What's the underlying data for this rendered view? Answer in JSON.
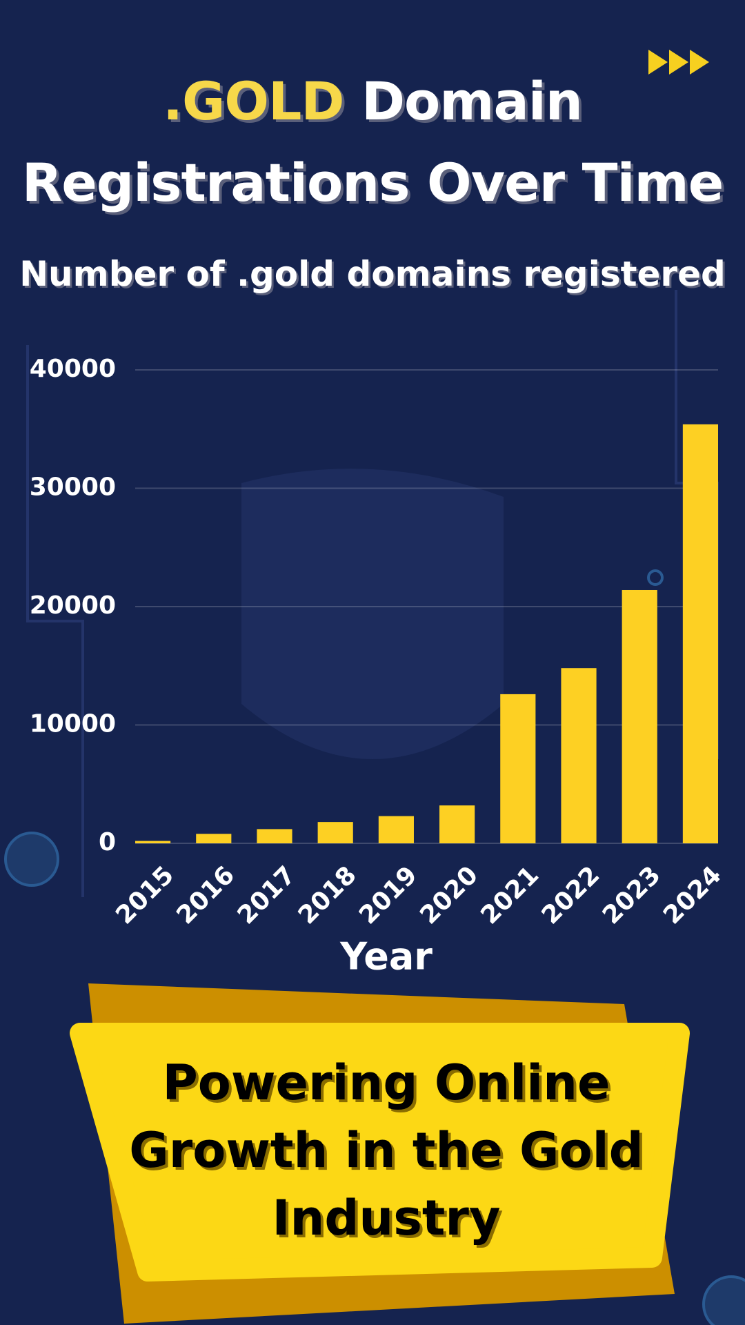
{
  "chart_data": {
    "type": "bar",
    "title_highlight": ".GOLD",
    "title": "Domain Registrations Over Time",
    "subtitle": "Number of .gold domains registered",
    "x_label": "Year",
    "categories": [
      "2015",
      "2016",
      "2017",
      "2018",
      "2019",
      "2020",
      "2021",
      "2022",
      "2023",
      "2024"
    ],
    "values": [
      200,
      800,
      1200,
      1800,
      2300,
      3200,
      12600,
      14800,
      21400,
      35400
    ],
    "color": "#fdd023",
    "ylim": [
      0,
      40000
    ],
    "yticks": [
      0,
      10000,
      20000,
      30000,
      40000
    ],
    "grid": true
  },
  "banner": {
    "text": "Powering Online Growth in the Gold Industry"
  }
}
